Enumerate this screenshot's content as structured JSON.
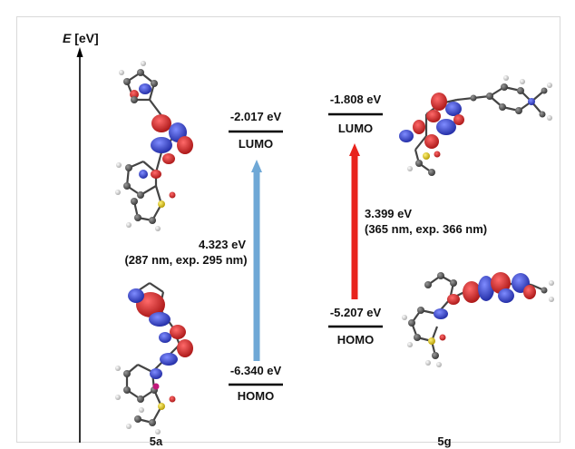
{
  "axis": {
    "label_italic": "E",
    "label_unit": " [eV]"
  },
  "left": {
    "compound": "5a",
    "lumo": {
      "energy": "-2.017 eV",
      "label": "LUMO"
    },
    "homo": {
      "energy": "-6.340 eV",
      "label": "HOMO"
    },
    "gap": {
      "energy": "4.323 eV",
      "detail": "(287 nm, exp. 295 nm)"
    },
    "arrow_color": "#6fa8d6"
  },
  "right": {
    "compound": "5g",
    "lumo": {
      "energy": "-1.808 eV",
      "label": "LUMO"
    },
    "homo": {
      "energy": "-5.207 eV",
      "label": "HOMO"
    },
    "gap": {
      "energy": "3.399 eV",
      "detail": "(365 nm, exp. 366 nm)"
    },
    "arrow_color": "#e8231c"
  },
  "orbital_colors": {
    "positive": "#d42020",
    "negative": "#2a35c8",
    "carbon": "#555555",
    "hydrogen": "#dddddd",
    "sulfur": "#d9c21a",
    "oxygen": "#e02020",
    "nitrogen": "#3a4ad0"
  }
}
